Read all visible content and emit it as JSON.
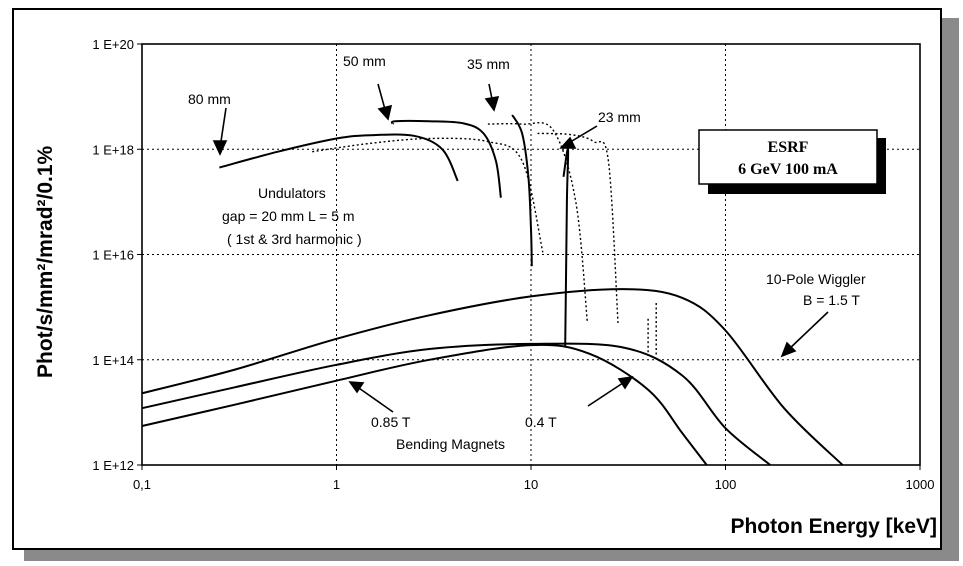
{
  "chart_data": {
    "type": "line",
    "xlabel": "Photon Energy [keV]",
    "ylabel": "Phot/s/mm²/mrad²/0.1%",
    "x_scale": "log",
    "y_scale": "log",
    "xlim": [
      0.1,
      1000
    ],
    "ylim": [
      1000000000000.0,
      1e+20
    ],
    "grid": "dotted",
    "x_tick_labels": [
      "0,1",
      "1",
      "10",
      "100",
      "1000"
    ],
    "y_tick_labels": [
      "1 E+12",
      "1 E+14",
      "1 E+16",
      "1 E+18",
      "1 E+20"
    ],
    "box": {
      "line1": "ESRF",
      "line2": "6 GeV 100 mA"
    },
    "annotations": [
      {
        "text": "80 mm"
      },
      {
        "text": "50 mm"
      },
      {
        "text": "35 mm"
      },
      {
        "text": "23 mm"
      },
      {
        "text": "Undulators"
      },
      {
        "text": "gap = 20 mm L = 5 m"
      },
      {
        "text": "( 1st & 3rd harmonic )"
      },
      {
        "text": "10-Pole  Wiggler"
      },
      {
        "text": "B = 1.5 T"
      },
      {
        "text": "0.85 T"
      },
      {
        "text": "0.4 T"
      },
      {
        "text": "Bending Magnets"
      }
    ],
    "series": [
      {
        "id": "u80-fund",
        "style": "solid",
        "x": [
          0.25,
          0.5,
          1,
          1.5,
          2.5,
          3.5,
          4.2
        ],
        "y": [
          4.5e+17,
          9e+17,
          1.6e+18,
          1.85e+18,
          1.8e+18,
          1e+18,
          2.5e+17
        ]
      },
      {
        "id": "u80-3rd",
        "style": "dotted",
        "x": [
          0.75,
          1.5,
          3,
          6,
          9,
          11.5
        ],
        "y": [
          9e+17,
          1.3e+18,
          1.6e+18,
          1.4e+18,
          6e+17,
          1.1e+16
        ]
      },
      {
        "id": "u50-fund",
        "style": "solid",
        "x": [
          1.95,
          2,
          3,
          4.5,
          5.7,
          6.6,
          7
        ],
        "y": [
          3e+18,
          3.4e+18,
          3.4e+18,
          3.1e+18,
          2e+18,
          6e+17,
          1.2e+17
        ]
      },
      {
        "id": "u50-3rd",
        "style": "dotted",
        "x": [
          6,
          9,
          13,
          17,
          19.5
        ],
        "y": [
          3e+18,
          3e+18,
          2.3e+18,
          1e+17,
          500000000000000.0
        ]
      },
      {
        "id": "u35",
        "style": "solid",
        "x": [
          8,
          9,
          9.7,
          10,
          10.1
        ],
        "y": [
          4.5e+18,
          2e+18,
          3e+17,
          3e+16,
          6000000000000000.0
        ]
      },
      {
        "id": "u35-3rd",
        "style": "dotted",
        "x": [
          10.8,
          16,
          21,
          25,
          28
        ],
        "y": [
          2e+18,
          1.9e+18,
          1.4e+18,
          6e+17,
          500000000000000.0
        ]
      },
      {
        "id": "u23",
        "style": "solid",
        "x": [
          14.7,
          15.5,
          15.3,
          15
        ],
        "y": [
          3e+17,
          1e+18,
          1e+17,
          180000000000000.0
        ]
      },
      {
        "id": "wiggler",
        "style": "solid",
        "x": [
          0.1,
          0.3,
          1,
          3,
          10,
          30,
          60,
          100,
          200,
          400
        ],
        "y": [
          23000000000000.0,
          65000000000000.0,
          250000000000000.0,
          700000000000000.0,
          1600000000000000.0,
          2200000000000000.0,
          1500000000000000.0,
          360000000000000.0,
          12000000000000.0,
          1000000000000.0
        ]
      },
      {
        "id": "bm-0.85",
        "style": "solid",
        "x": [
          0.1,
          0.3,
          1,
          3,
          10,
          30,
          60,
          100,
          170
        ],
        "y": [
          12000000000000.0,
          30000000000000.0,
          80000000000000.0,
          160000000000000.0,
          200000000000000.0,
          170000000000000.0,
          50000000000000.0,
          5000000000000.0,
          1000000000000.0
        ]
      },
      {
        "id": "bm-0.4",
        "style": "solid",
        "x": [
          0.1,
          0.3,
          1,
          3,
          10,
          20,
          40,
          60,
          80
        ],
        "y": [
          5500000000000.0,
          14000000000000.0,
          40000000000000.0,
          100000000000000.0,
          190000000000000.0,
          130000000000000.0,
          27000000000000.0,
          4000000000000.0,
          1000000000000.0
        ]
      },
      {
        "id": "wiggler-edge",
        "style": "dotted",
        "x": [
          44,
          44
        ],
        "y": [
          1200000000000000.0,
          120000000000000.0
        ]
      },
      {
        "id": "wiggler-edge2",
        "style": "dotted",
        "x": [
          40,
          40
        ],
        "y": [
          600000000000000.0,
          120000000000000.0
        ]
      }
    ]
  }
}
